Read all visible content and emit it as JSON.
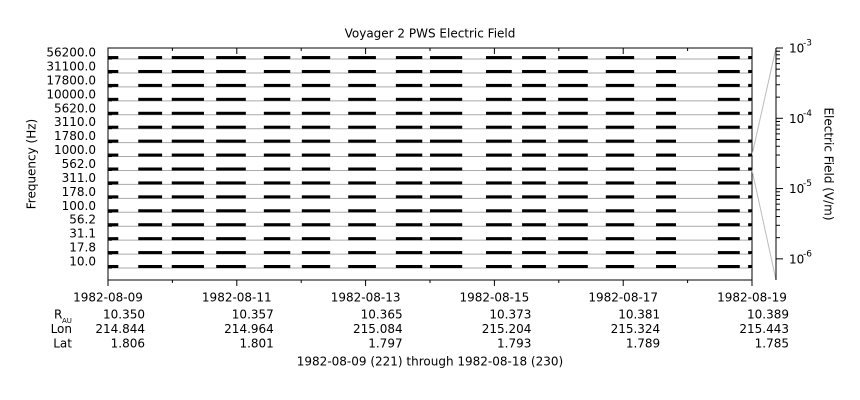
{
  "chart_data": {
    "type": "spectrogram",
    "title": "Voyager 2 PWS Electric Field",
    "y_label": "Frequency (Hz)",
    "y2_label": "Electric Field (V/m)",
    "footer": "1982-08-09 (221) through 1982-08-18 (230)",
    "channels": [
      "10.0",
      "17.8",
      "31.1",
      "56.2",
      "100.0",
      "178.0",
      "311.0",
      "562.0",
      "1000.0",
      "1780.0",
      "3110.0",
      "5620.0",
      "10000.0",
      "17800.0",
      "31100.0",
      "56200.0"
    ],
    "xlim": [
      0,
      10
    ],
    "xticks": [
      {
        "value": 0,
        "label": "1982-08-09"
      },
      {
        "value": 2,
        "label": "1982-08-11"
      },
      {
        "value": 4,
        "label": "1982-08-13"
      },
      {
        "value": 6,
        "label": "1982-08-15"
      },
      {
        "value": 8,
        "label": "1982-08-17"
      },
      {
        "value": 10,
        "label": "1982-08-19"
      }
    ],
    "xminor": [
      1,
      3,
      5,
      7,
      9
    ],
    "segments": [
      [
        0.0,
        0.16
      ],
      [
        0.47,
        0.84
      ],
      [
        0.99,
        1.49
      ],
      [
        1.68,
        2.14
      ],
      [
        2.42,
        2.83
      ],
      [
        3.01,
        3.45
      ],
      [
        3.73,
        4.16
      ],
      [
        4.47,
        4.88
      ],
      [
        5.0,
        5.5
      ],
      [
        5.87,
        6.27
      ],
      [
        6.43,
        6.8
      ],
      [
        6.99,
        7.45
      ],
      [
        7.73,
        8.17
      ],
      [
        8.51,
        8.82
      ],
      [
        9.47,
        9.81
      ],
      [
        9.94,
        10.0
      ]
    ],
    "y2lim": [
      5e-07,
      0.001
    ],
    "y2log": true,
    "y2ticks": [
      {
        "value": 1e-06,
        "label": "10",
        "exponent": "-6"
      },
      {
        "value": 1e-05,
        "label": "10",
        "exponent": "-5"
      },
      {
        "value": 0.0001,
        "label": "10",
        "exponent": "-4"
      },
      {
        "value": 0.001,
        "label": "10",
        "exponent": "-3"
      }
    ],
    "ephemeris": [
      {
        "label": "R",
        "subscript": "AU",
        "values": [
          "10.350",
          "10.357",
          "10.365",
          "10.373",
          "10.381",
          "10.389"
        ]
      },
      {
        "label": "Lon",
        "values": [
          "214.844",
          "214.964",
          "215.084",
          "215.204",
          "215.324",
          "215.443"
        ]
      },
      {
        "label": "Lat",
        "values": [
          "1.806",
          "1.801",
          "1.797",
          "1.793",
          "1.789",
          "1.785"
        ]
      }
    ],
    "color": "#000000",
    "grid": true
  }
}
